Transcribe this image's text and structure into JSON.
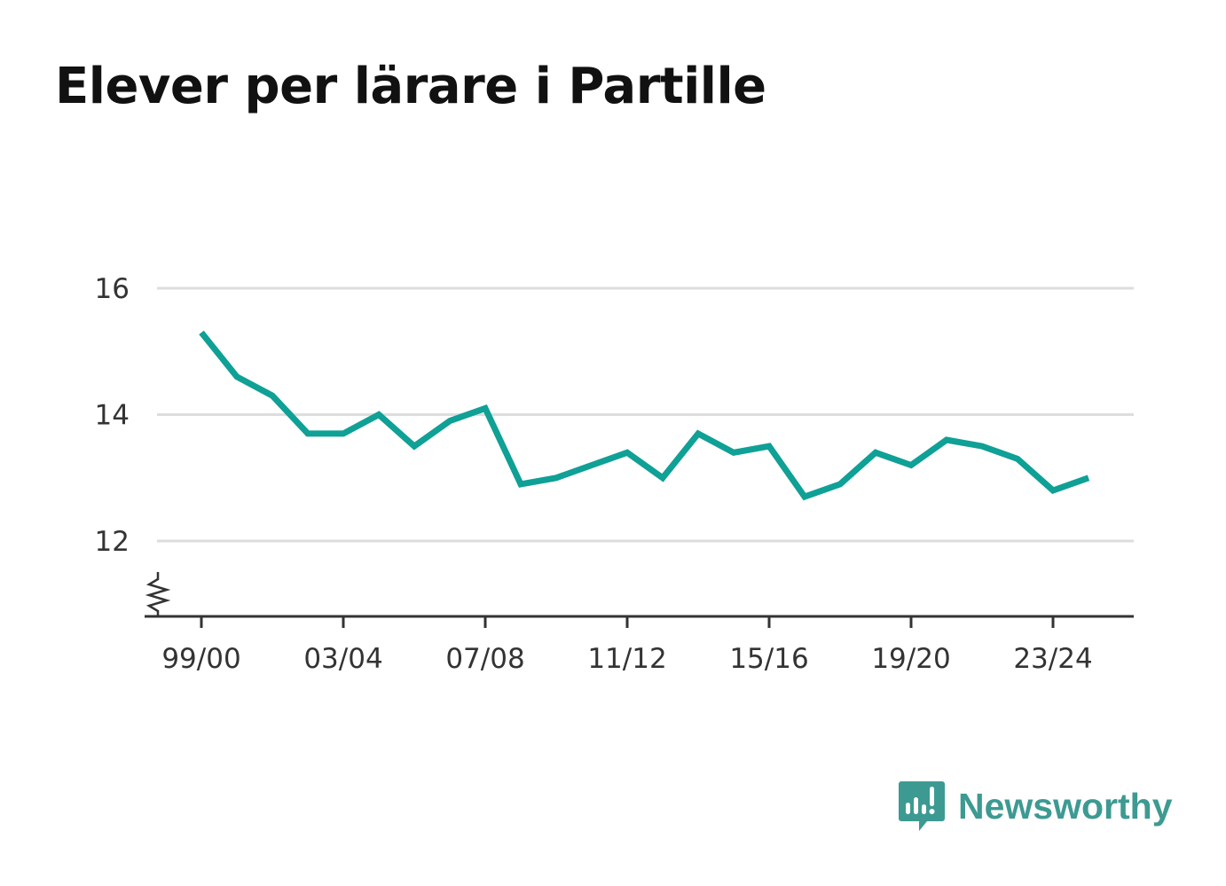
{
  "colors": {
    "line": "#0fa096",
    "grid": "#dddddd",
    "axis": "#333333",
    "brand": "#3d9a92"
  },
  "brand": {
    "name": "Newsworthy",
    "icon": "bar-chart-speech-bubble-icon"
  },
  "chart_data": {
    "type": "line",
    "title": "Elever per lärare i Partille",
    "xlabel": "",
    "ylabel": "",
    "x": [
      "99/00",
      "00/01",
      "01/02",
      "02/03",
      "03/04",
      "04/05",
      "05/06",
      "06/07",
      "07/08",
      "08/09",
      "09/10",
      "10/11",
      "11/12",
      "12/13",
      "13/14",
      "14/15",
      "15/16",
      "16/17",
      "17/18",
      "18/19",
      "19/20",
      "20/21",
      "21/22",
      "22/23",
      "23/24",
      "24/25"
    ],
    "x_tick_labels": [
      "99/00",
      "03/04",
      "07/08",
      "11/12",
      "15/16",
      "19/20",
      "23/24"
    ],
    "y_ticks": [
      12,
      14,
      16
    ],
    "ylim": [
      10.8,
      16
    ],
    "y_axis_break": true,
    "grid": true,
    "legend": "none",
    "series": [
      {
        "values": [
          15.3,
          14.6,
          14.3,
          13.7,
          13.7,
          14.0,
          13.5,
          13.9,
          14.1,
          12.9,
          13.0,
          13.2,
          13.4,
          13.0,
          13.7,
          13.4,
          13.5,
          12.7,
          12.9,
          13.4,
          13.2,
          13.6,
          13.5,
          13.3,
          12.8,
          13.0
        ]
      }
    ]
  }
}
